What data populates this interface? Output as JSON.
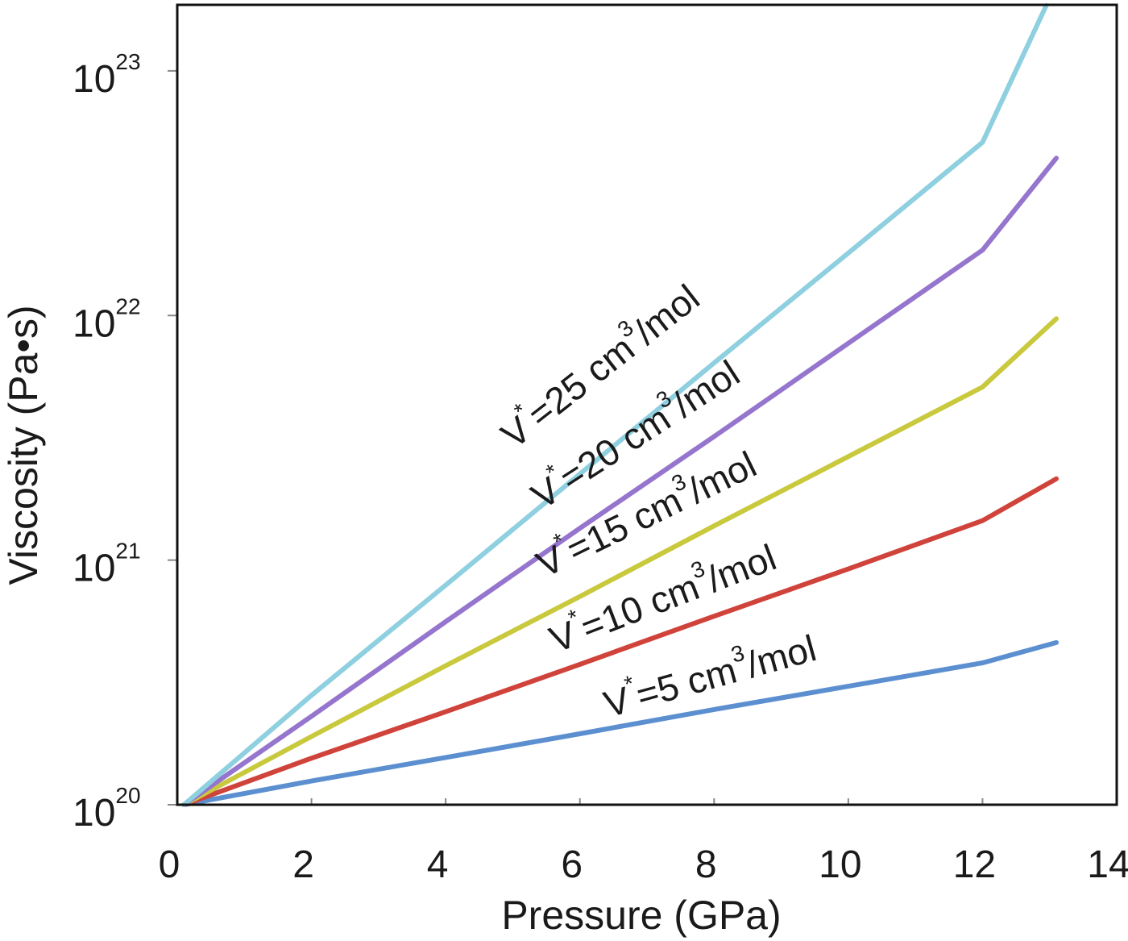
{
  "chart_data": {
    "type": "line",
    "title": "",
    "xlabel": "Pressure (GPa)",
    "ylabel": "Viscosity (Pa•s)",
    "x_scale": "linear",
    "y_scale": "log",
    "xlim": [
      0,
      14
    ],
    "ylim_log10": [
      20,
      23.27
    ],
    "x_ticks": [
      0,
      2,
      4,
      6,
      8,
      10,
      12,
      14
    ],
    "x_tick_labels": [
      "0",
      "2",
      "4",
      "6",
      "8",
      "10",
      "12",
      "14"
    ],
    "y_ticks_log10": [
      20,
      21,
      22,
      23
    ],
    "y_tick_labels": [
      {
        "base": "10",
        "exp": "20"
      },
      {
        "base": "10",
        "exp": "21"
      },
      {
        "base": "10",
        "exp": "22"
      },
      {
        "base": "10",
        "exp": "23"
      }
    ],
    "grid": false,
    "legend": "none",
    "series": [
      {
        "label": {
          "v": "V",
          "star": "*",
          "rest": "=5 cm",
          "cube": "3",
          "unit": "/mol"
        },
        "color": "#5b8fd0",
        "x": [
          0.1,
          2,
          4,
          6,
          8,
          10,
          12,
          13.1
        ],
        "y": [
          1e+20,
          1.25e+20,
          1.56e+20,
          1.95e+20,
          2.45e+20,
          3.05e+20,
          3.8e+20,
          4.6e+20
        ]
      },
      {
        "label": {
          "v": "V",
          "star": "*",
          "rest": "=10 cm",
          "cube": "3",
          "unit": "/mol"
        },
        "color": "#d0433b",
        "x": [
          0.1,
          2,
          4,
          6,
          8,
          10,
          12,
          13.1
        ],
        "y": [
          1e+20,
          1.55e+20,
          2.4e+20,
          3.75e+20,
          5.9e+20,
          9.2e+20,
          1.45e+21,
          2.15e+21
        ]
      },
      {
        "label": {
          "v": "V",
          "star": "*",
          "rest": "=15 cm",
          "cube": "3",
          "unit": "/mol"
        },
        "color": "#c9c93e",
        "x": [
          0.1,
          2,
          4,
          6,
          8,
          10,
          12,
          13.1
        ],
        "y": [
          1e+20,
          1.9e+20,
          3.7e+20,
          7.1e+20,
          1.38e+21,
          2.65e+21,
          5.1e+21,
          9.7e+21
        ]
      },
      {
        "label": {
          "v": "V",
          "star": "*",
          "rest": "=20 cm",
          "cube": "3",
          "unit": "/mol"
        },
        "color": "#9575cd",
        "x": [
          0.1,
          2,
          4,
          6,
          8,
          10,
          12,
          13.1
        ],
        "y": [
          1e+20,
          2.3e+20,
          5.6e+20,
          1.35e+21,
          3.2e+21,
          7.7e+21,
          1.85e+22,
          4.4e+22
        ]
      },
      {
        "label": {
          "v": "V",
          "star": "*",
          "rest": "=25 cm",
          "cube": "3",
          "unit": "/mol"
        },
        "color": "#8ecfe0",
        "x": [
          0.1,
          2,
          4,
          6,
          8,
          10,
          12,
          12.95
        ],
        "y": [
          1e+20,
          2.8e+20,
          7.9e+20,
          2.25e+21,
          6.4e+21,
          1.8e+22,
          5.1e+22,
          1.85e+23
        ]
      }
    ]
  }
}
